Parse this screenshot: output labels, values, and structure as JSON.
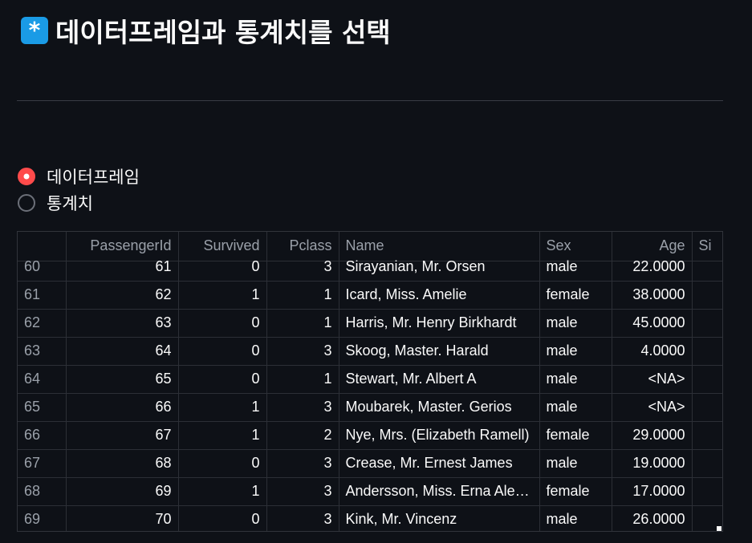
{
  "header": {
    "icon": "asterisk-badge-icon",
    "icon_glyph": "*",
    "title": "데이터프레임과 통계치를 선택"
  },
  "radio": {
    "options": [
      {
        "label": "데이터프레임",
        "selected": true
      },
      {
        "label": "통계치",
        "selected": false
      }
    ]
  },
  "table": {
    "columns": [
      "",
      "PassengerId",
      "Survived",
      "Pclass",
      "Name",
      "Sex",
      "Age",
      "Si"
    ],
    "rows": [
      [
        "60",
        "61",
        "0",
        "3",
        "Sirayanian, Mr. Orsen",
        "male",
        "22.0000",
        ""
      ],
      [
        "61",
        "62",
        "1",
        "1",
        "Icard, Miss. Amelie",
        "female",
        "38.0000",
        ""
      ],
      [
        "62",
        "63",
        "0",
        "1",
        "Harris, Mr. Henry Birkhardt",
        "male",
        "45.0000",
        ""
      ],
      [
        "63",
        "64",
        "0",
        "3",
        "Skoog, Master. Harald",
        "male",
        "4.0000",
        ""
      ],
      [
        "64",
        "65",
        "0",
        "1",
        "Stewart, Mr. Albert A",
        "male",
        "<NA>",
        ""
      ],
      [
        "65",
        "66",
        "1",
        "3",
        "Moubarek, Master. Gerios",
        "male",
        "<NA>",
        ""
      ],
      [
        "66",
        "67",
        "1",
        "2",
        "Nye, Mrs. (Elizabeth Ramell)",
        "female",
        "29.0000",
        ""
      ],
      [
        "67",
        "68",
        "0",
        "3",
        "Crease, Mr. Ernest James",
        "male",
        "19.0000",
        ""
      ],
      [
        "68",
        "69",
        "1",
        "3",
        "Andersson, Miss. Erna Ale…",
        "female",
        "17.0000",
        ""
      ],
      [
        "69",
        "70",
        "0",
        "3",
        "Kink, Mr. Vincenz",
        "male",
        "26.0000",
        ""
      ]
    ]
  },
  "colors": {
    "background": "#0e1117",
    "accent": "#ff4b4b",
    "icon_bg": "#1a9be6"
  }
}
